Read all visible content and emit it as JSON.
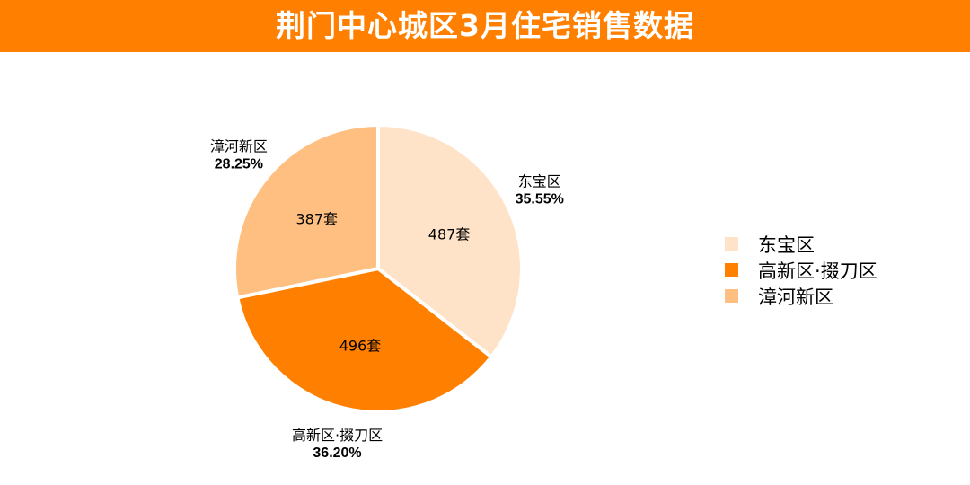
{
  "title": "荆门中心城区3月住宅销售数据",
  "colors": {
    "header_bg": "#ff7f00",
    "header_text": "#ffffff",
    "slice_separator": "#ffffff"
  },
  "chart_data": {
    "type": "pie",
    "title": "荆门中心城区3月住宅销售数据",
    "unit": "套",
    "start_angle_deg": 0,
    "direction": "clockwise",
    "legend_position": "right",
    "slices": [
      {
        "name": "东宝区",
        "value": 487,
        "value_label": "487套",
        "percent_label": "35.55%",
        "color": "#ffe3c8"
      },
      {
        "name": "高新区·掇刀区",
        "value": 496,
        "value_label": "496套",
        "percent_label": "36.20%",
        "color": "#ff7f00"
      },
      {
        "name": "漳河新区",
        "value": 387,
        "value_label": "387套",
        "percent_label": "28.25%",
        "color": "#ffbf80"
      }
    ]
  }
}
